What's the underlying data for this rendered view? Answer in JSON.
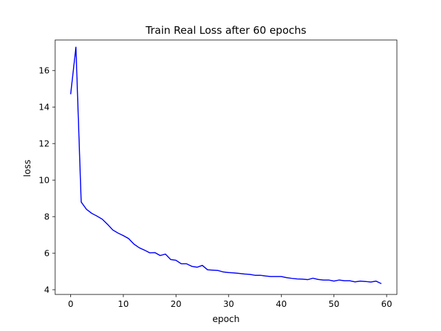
{
  "chart_data": {
    "type": "line",
    "title": "Train Real Loss after 60 epochs",
    "xlabel": "epoch",
    "ylabel": "loss",
    "xlim": [
      -2.95,
      61.95
    ],
    "ylim": [
      3.74,
      17.67
    ],
    "xticks": [
      0,
      10,
      20,
      30,
      40,
      50,
      60
    ],
    "yticks": [
      4,
      6,
      8,
      10,
      12,
      14,
      16
    ],
    "grid": false,
    "legend": "none",
    "series": [
      {
        "color": "#0000ff",
        "x": [
          0,
          1,
          2,
          3,
          4,
          5,
          6,
          7,
          8,
          9,
          10,
          11,
          12,
          13,
          14,
          15,
          16,
          17,
          18,
          19,
          20,
          21,
          22,
          23,
          24,
          25,
          26,
          27,
          28,
          29,
          30,
          31,
          32,
          33,
          34,
          35,
          36,
          37,
          38,
          39,
          40,
          41,
          42,
          43,
          44,
          45,
          46,
          47,
          48,
          49,
          50,
          51,
          52,
          53,
          54,
          55,
          56,
          57,
          58,
          59
        ],
        "y": [
          14.7,
          17.28,
          8.8,
          8.4,
          8.18,
          8.03,
          7.86,
          7.58,
          7.27,
          7.1,
          6.96,
          6.8,
          6.5,
          6.3,
          6.17,
          6.02,
          6.03,
          5.87,
          5.95,
          5.65,
          5.61,
          5.42,
          5.42,
          5.28,
          5.23,
          5.33,
          5.09,
          5.07,
          5.05,
          4.97,
          4.94,
          4.92,
          4.89,
          4.86,
          4.84,
          4.79,
          4.79,
          4.75,
          4.72,
          4.72,
          4.72,
          4.66,
          4.62,
          4.59,
          4.58,
          4.55,
          4.63,
          4.56,
          4.53,
          4.53,
          4.47,
          4.53,
          4.49,
          4.49,
          4.43,
          4.47,
          4.45,
          4.42,
          4.47,
          4.33
        ]
      }
    ]
  }
}
